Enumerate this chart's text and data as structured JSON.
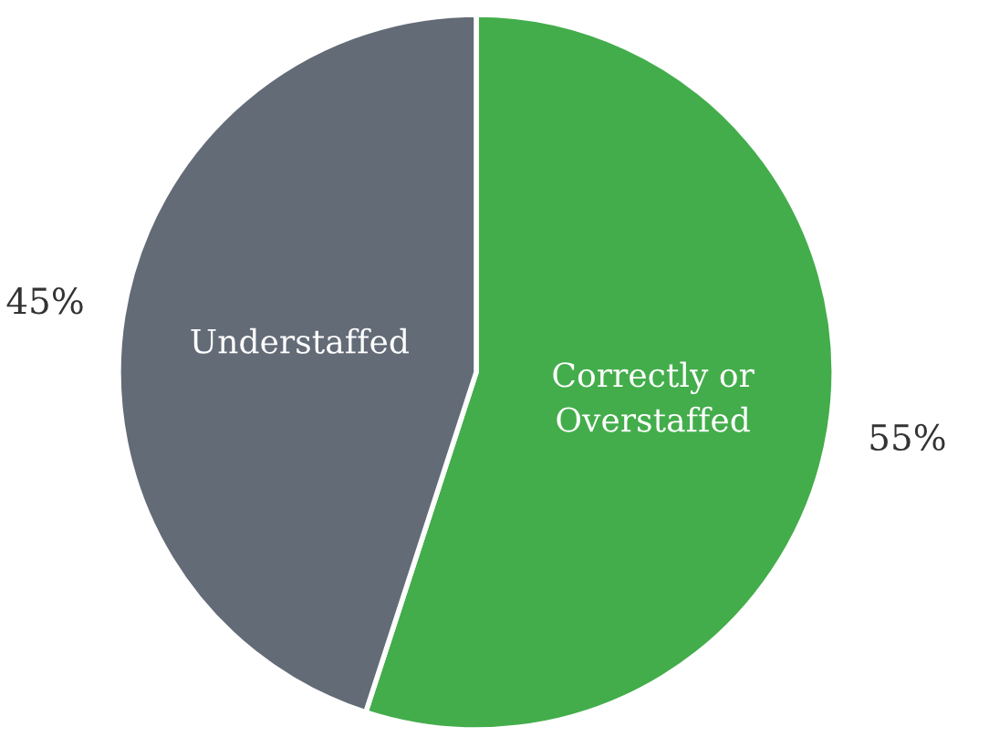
{
  "chart_data": {
    "type": "pie",
    "categories": [
      "Correctly or Overstaffed",
      "Understaffed"
    ],
    "values": [
      55,
      45
    ],
    "colors": [
      "#43ad4b",
      "#636b77"
    ],
    "value_labels": [
      "55%",
      "45%"
    ],
    "legend": false
  }
}
